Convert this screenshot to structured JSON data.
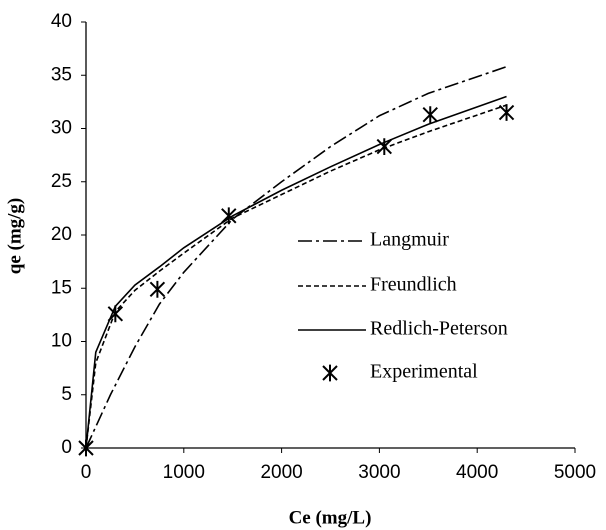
{
  "chart_data": {
    "type": "line",
    "x_label": "Ce (mg/L)",
    "y_label": "qe (mg/g)",
    "xlim": [
      0,
      5000
    ],
    "xticks": [
      0,
      1000,
      2000,
      3000,
      4000,
      5000
    ],
    "ylim": [
      0,
      40
    ],
    "yticks": [
      0,
      5,
      10,
      15,
      20,
      25,
      30,
      35,
      40
    ],
    "series": [
      {
        "name": "Langmuir",
        "color": "#000000",
        "style": "dashdot",
        "x": [
          0,
          250,
          500,
          750,
          1000,
          1500,
          2000,
          2500,
          3000,
          3500,
          4300
        ],
        "values": [
          0,
          5,
          9.5,
          13.5,
          16.5,
          21.5,
          25,
          28.3,
          31.2,
          33.3,
          35.8
        ]
      },
      {
        "name": "Freundlich",
        "color": "#000000",
        "style": "dashed",
        "x": [
          0,
          100,
          300,
          500,
          750,
          1000,
          1500,
          2000,
          2500,
          3000,
          3500,
          4300
        ],
        "values": [
          0,
          8,
          12.8,
          14.8,
          16.6,
          18.3,
          21.6,
          23.8,
          26,
          28,
          29.7,
          32.2
        ]
      },
      {
        "name": "Redlich-Peterson",
        "color": "#000000",
        "style": "solid",
        "x": [
          0,
          100,
          300,
          500,
          750,
          1000,
          1500,
          2000,
          2500,
          3000,
          3500,
          4300
        ],
        "values": [
          0,
          9,
          13.3,
          15.3,
          17,
          18.8,
          21.8,
          24.2,
          26.4,
          28.5,
          30.4,
          33
        ]
      },
      {
        "name": "Experimental",
        "color": "#000000",
        "style": "marker",
        "x": [
          0,
          300,
          730,
          1460,
          3050,
          3520,
          4300
        ],
        "values": [
          0,
          12.6,
          14.9,
          21.8,
          28.3,
          31.3,
          31.5
        ]
      }
    ]
  }
}
